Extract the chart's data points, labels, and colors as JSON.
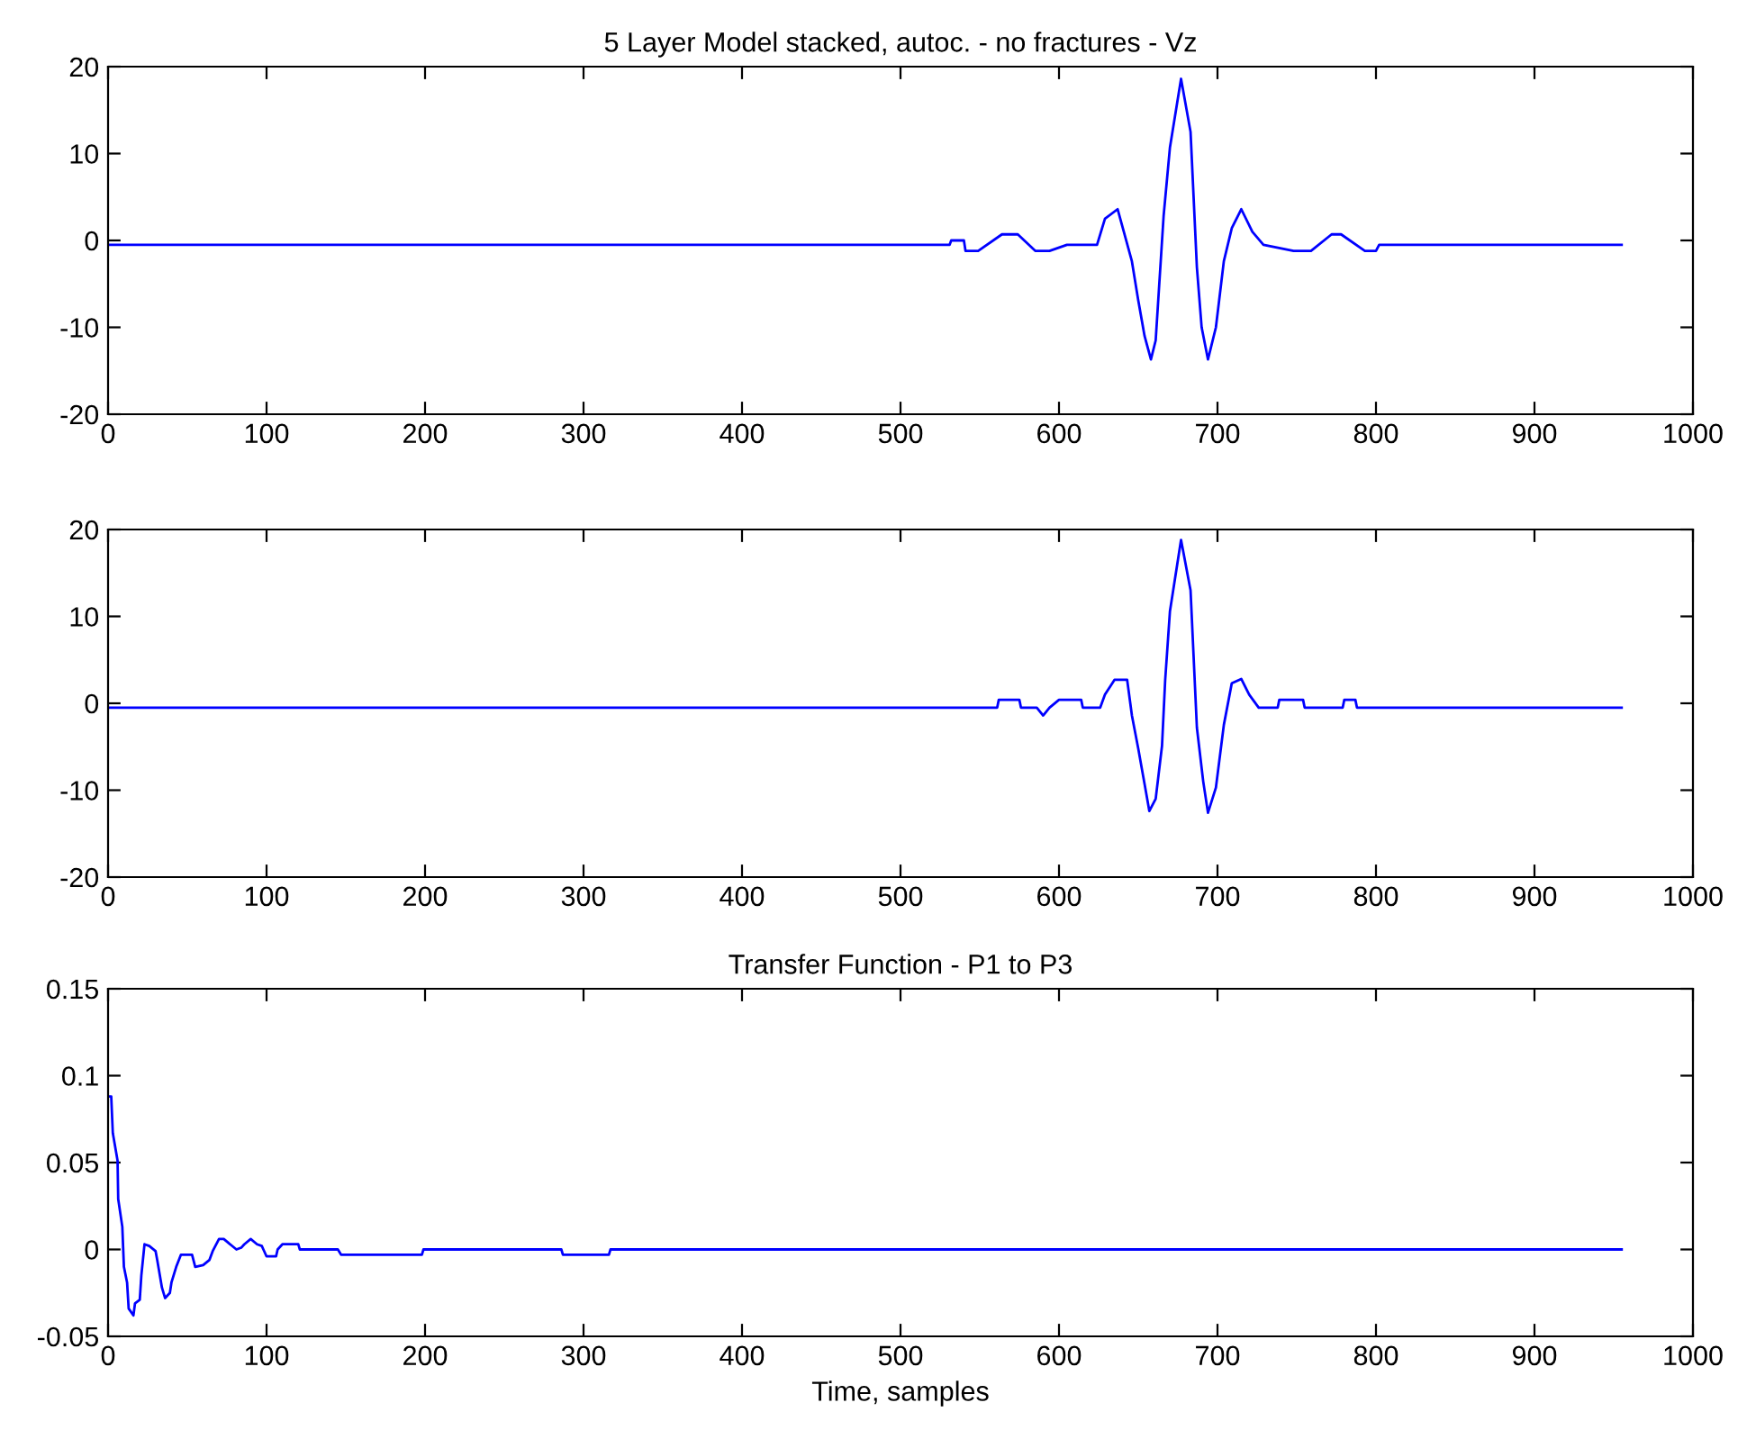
{
  "chart_data": [
    {
      "type": "line",
      "title": "5 Layer Model stacked, autoc. - no fractures - Vz",
      "xlim": [
        0,
        1000
      ],
      "ylim": [
        -20,
        20
      ],
      "xticks": [
        0,
        100,
        200,
        300,
        400,
        500,
        600,
        700,
        800,
        900,
        1000
      ],
      "yticks": [
        -20,
        -10,
        0,
        10,
        20
      ],
      "grid": false,
      "series": [
        {
          "color": "#0000ff",
          "x": [
            0,
            531,
            532,
            540,
            541,
            549,
            564,
            574,
            585,
            594,
            605,
            624,
            629,
            637,
            646,
            650,
            654,
            658,
            661,
            666,
            670,
            677,
            683,
            687,
            690,
            694,
            699,
            704,
            709,
            715,
            722,
            729,
            748,
            759,
            772,
            778,
            793,
            800,
            802,
            955
          ],
          "values": [
            -0.5,
            -0.5,
            0,
            0,
            -1.2,
            -1.2,
            0.7,
            0.7,
            -1.2,
            -1.2,
            -0.5,
            -0.5,
            2.5,
            3.6,
            -2.4,
            -6.9,
            -11,
            -13.7,
            -11.5,
            2.8,
            10.7,
            18.6,
            12.5,
            -3.1,
            -10,
            -13.7,
            -10,
            -2.4,
            1.4,
            3.6,
            1,
            -0.5,
            -1.2,
            -1.2,
            0.7,
            0.7,
            -1.2,
            -1.2,
            -0.5,
            -0.5
          ]
        }
      ]
    },
    {
      "type": "line",
      "xlim": [
        0,
        1000
      ],
      "ylim": [
        -20,
        20
      ],
      "xticks": [
        0,
        100,
        200,
        300,
        400,
        500,
        600,
        700,
        800,
        900,
        1000
      ],
      "yticks": [
        -20,
        -10,
        0,
        10,
        20
      ],
      "grid": false,
      "series": [
        {
          "color": "#0000ff",
          "x": [
            0,
            561,
            562,
            575,
            576,
            586,
            590,
            594,
            600,
            614,
            615,
            626,
            629,
            635,
            643,
            646,
            650,
            654,
            657,
            661,
            665,
            667,
            670,
            677,
            683,
            687,
            691,
            694,
            699,
            704,
            709,
            715,
            720,
            726,
            738,
            739,
            754,
            755,
            779,
            780,
            787,
            788,
            955
          ],
          "values": [
            -0.5,
            -0.5,
            0.4,
            0.4,
            -0.5,
            -0.5,
            -1.4,
            -0.5,
            0.4,
            0.4,
            -0.5,
            -0.5,
            1,
            2.7,
            2.7,
            -1.4,
            -5.2,
            -9.3,
            -12.4,
            -11,
            -4.9,
            2.7,
            10.6,
            18.8,
            13,
            -2.8,
            -9,
            -12.6,
            -9.7,
            -2.5,
            2.3,
            2.8,
            1,
            -0.5,
            -0.5,
            0.4,
            0.4,
            -0.5,
            -0.5,
            0.4,
            0.4,
            -0.5,
            -0.5
          ]
        }
      ]
    },
    {
      "type": "line",
      "title": "Transfer Function - P1 to P3",
      "xlabel": "Time, samples",
      "xlim": [
        0,
        1000
      ],
      "ylim": [
        -0.05,
        0.15
      ],
      "xticks": [
        0,
        100,
        200,
        300,
        400,
        500,
        600,
        700,
        800,
        900,
        1000
      ],
      "yticks": [
        -0.05,
        0,
        0.05,
        0.1,
        0.15
      ],
      "grid": false,
      "series": [
        {
          "color": "#0000ff",
          "x": [
            0,
            2,
            3,
            6,
            6.4,
            9,
            10,
            12,
            13,
            16,
            17,
            20,
            21,
            23,
            26,
            30,
            31,
            34,
            36,
            39,
            40,
            43,
            46,
            53,
            55,
            60,
            64,
            66,
            70,
            73,
            81,
            84,
            86,
            90,
            94,
            97,
            98,
            100,
            106,
            107,
            110,
            120,
            121,
            145,
            147,
            198,
            199,
            286,
            287,
            316,
            317,
            955
          ],
          "values": [
            0.088,
            0.088,
            0.067,
            0.051,
            0.029,
            0.013,
            -0.01,
            -0.019,
            -0.034,
            -0.038,
            -0.031,
            -0.029,
            -0.015,
            0.003,
            0.002,
            -0.001,
            -0.006,
            -0.022,
            -0.028,
            -0.025,
            -0.019,
            -0.01,
            -0.003,
            -0.003,
            -0.01,
            -0.009,
            -0.006,
            -0.001,
            0.006,
            0.006,
            0,
            0.001,
            0.003,
            0.006,
            0.003,
            0.002,
            0,
            -0.004,
            -0.004,
            0,
            0.003,
            0.003,
            0,
            0,
            -0.003,
            -0.003,
            0,
            0,
            -0.003,
            -0.003,
            0,
            0
          ]
        }
      ]
    }
  ]
}
